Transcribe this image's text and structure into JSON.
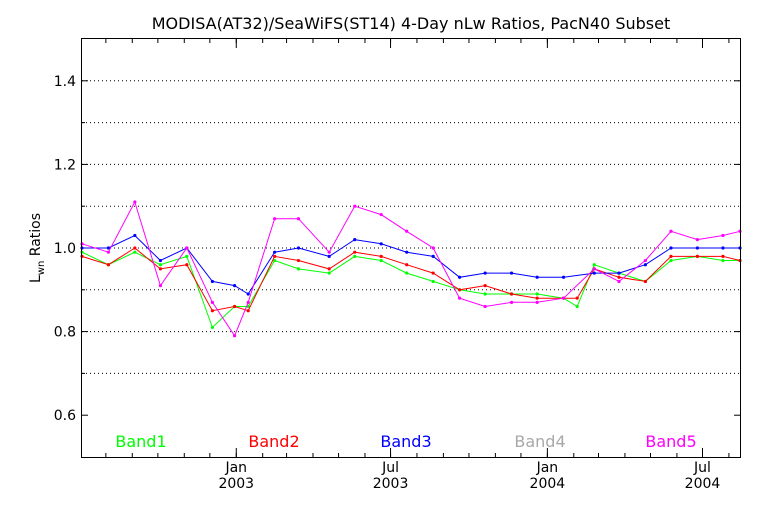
{
  "chart_data": {
    "type": "line",
    "title": "MODISA(AT32)/SeaWiFS(ST14) 4-Day nLw Ratios, PacN40 Subset",
    "ylabel": {
      "base": "L",
      "subscript": "wn",
      "rest": " Ratios"
    },
    "xlabel": "",
    "ylim": [
      0.5,
      1.5
    ],
    "xlim": [
      "2002-07-04",
      "2004-08-14"
    ],
    "y_ticks": [
      "0.6",
      "0.8",
      "1.0",
      "1.2",
      "1.4"
    ],
    "y_tick_values": [
      0.6,
      0.8,
      1.0,
      1.2,
      1.4
    ],
    "y_grid": [
      0.7,
      0.8,
      0.9,
      1.0,
      1.1,
      1.2,
      1.3,
      1.4
    ],
    "x_ticks": [
      {
        "date": "2003-01-01",
        "month": "Jan",
        "year": "2003"
      },
      {
        "date": "2003-07-01",
        "month": "Jul",
        "year": "2003"
      },
      {
        "date": "2004-01-01",
        "month": "Jan",
        "year": "2004"
      },
      {
        "date": "2004-07-01",
        "month": "Jul",
        "year": "2004"
      }
    ],
    "grid": "horizontal-dotted",
    "legend_position": "bottom",
    "series": [
      {
        "name": "Band1",
        "color": "#00ff00",
        "dates": [
          "2002-07-04",
          "2002-08-04",
          "2002-09-04",
          "2002-10-04",
          "2002-11-04",
          "2002-12-04",
          "2002-12-30",
          "2003-01-15",
          "2003-02-15",
          "2003-03-15",
          "2003-04-20",
          "2003-05-20",
          "2003-06-20",
          "2003-07-20",
          "2003-08-20",
          "2003-09-20",
          "2003-10-20",
          "2003-11-20",
          "2003-12-20",
          "2004-01-20",
          "2004-02-05",
          "2004-02-25",
          "2004-03-25",
          "2004-04-25",
          "2004-05-25",
          "2004-06-25",
          "2004-07-25",
          "2004-08-14"
        ],
        "values": [
          0.99,
          0.96,
          0.99,
          0.96,
          0.98,
          0.81,
          0.86,
          0.86,
          0.97,
          0.95,
          0.94,
          0.98,
          0.97,
          0.94,
          0.92,
          0.9,
          0.89,
          0.89,
          0.89,
          0.88,
          0.86,
          0.96,
          0.94,
          0.92,
          0.97,
          0.98,
          0.97,
          0.97
        ]
      },
      {
        "name": "Band2",
        "color": "#ff0000",
        "dates": [
          "2002-07-04",
          "2002-08-04",
          "2002-09-04",
          "2002-10-04",
          "2002-11-04",
          "2002-12-04",
          "2002-12-30",
          "2003-01-15",
          "2003-02-15",
          "2003-03-15",
          "2003-04-20",
          "2003-05-20",
          "2003-06-20",
          "2003-07-20",
          "2003-08-20",
          "2003-09-20",
          "2003-10-20",
          "2003-11-20",
          "2003-12-20",
          "2004-01-20",
          "2004-02-05",
          "2004-02-25",
          "2004-03-25",
          "2004-04-25",
          "2004-05-25",
          "2004-06-25",
          "2004-07-25",
          "2004-08-14"
        ],
        "values": [
          0.98,
          0.96,
          1.0,
          0.95,
          0.96,
          0.85,
          0.86,
          0.85,
          0.98,
          0.97,
          0.95,
          0.99,
          0.98,
          0.96,
          0.94,
          0.9,
          0.91,
          0.89,
          0.88,
          0.88,
          0.88,
          0.95,
          0.93,
          0.92,
          0.98,
          0.98,
          0.98,
          0.97
        ]
      },
      {
        "name": "Band3",
        "color": "#0000ff",
        "dates": [
          "2002-07-04",
          "2002-08-04",
          "2002-09-04",
          "2002-10-04",
          "2002-11-04",
          "2002-12-04",
          "2002-12-30",
          "2003-01-15",
          "2003-02-15",
          "2003-03-15",
          "2003-04-20",
          "2003-05-20",
          "2003-06-20",
          "2003-07-20",
          "2003-08-20",
          "2003-09-20",
          "2003-10-20",
          "2003-11-20",
          "2003-12-20",
          "2004-01-20",
          "2004-02-25",
          "2004-03-25",
          "2004-04-25",
          "2004-05-25",
          "2004-06-25",
          "2004-07-25",
          "2004-08-14"
        ],
        "values": [
          1.0,
          1.0,
          1.03,
          0.97,
          1.0,
          0.92,
          0.91,
          0.89,
          0.99,
          1.0,
          0.98,
          1.02,
          1.01,
          0.99,
          0.98,
          0.93,
          0.94,
          0.94,
          0.93,
          0.93,
          0.94,
          0.94,
          0.96,
          1.0,
          1.0,
          1.0,
          1.0
        ]
      },
      {
        "name": "Band4",
        "color": "#a8a8a8",
        "dates": [],
        "values": []
      },
      {
        "name": "Band5",
        "color": "#ff00ff",
        "dates": [
          "2002-07-04",
          "2002-08-04",
          "2002-09-04",
          "2002-10-04",
          "2002-11-04",
          "2002-12-04",
          "2002-12-30",
          "2003-01-15",
          "2003-02-15",
          "2003-03-15",
          "2003-04-20",
          "2003-05-20",
          "2003-06-20",
          "2003-07-20",
          "2003-08-20",
          "2003-09-20",
          "2003-10-20",
          "2003-11-20",
          "2003-12-20",
          "2004-01-20",
          "2004-02-25",
          "2004-03-25",
          "2004-04-25",
          "2004-05-25",
          "2004-06-25",
          "2004-07-25",
          "2004-08-14"
        ],
        "values": [
          1.01,
          0.99,
          1.11,
          0.91,
          1.0,
          0.87,
          0.79,
          0.87,
          1.07,
          1.07,
          0.99,
          1.1,
          1.08,
          1.04,
          1.0,
          0.88,
          0.86,
          0.87,
          0.87,
          0.88,
          0.95,
          0.92,
          0.97,
          1.04,
          1.02,
          1.03,
          1.04
        ]
      }
    ]
  }
}
